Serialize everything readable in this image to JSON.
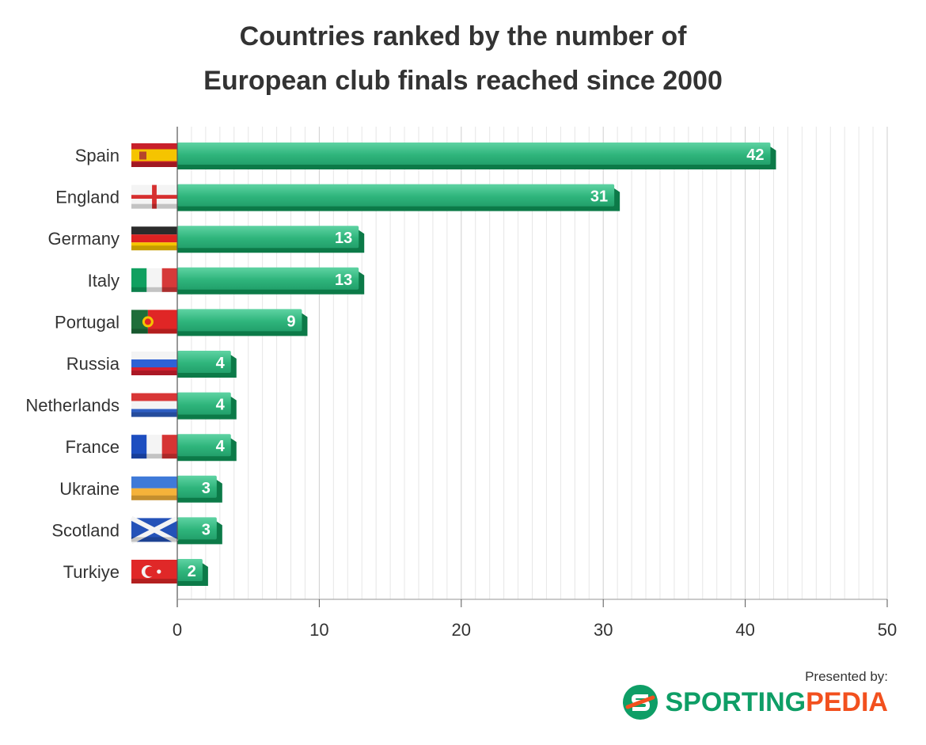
{
  "title_lines": [
    "Countries ranked by the number of",
    "European club finals reached since 2000"
  ],
  "chart_data": {
    "type": "bar",
    "orientation": "horizontal",
    "categories": [
      "Spain",
      "England",
      "Germany",
      "Italy",
      "Portugal",
      "Russia",
      "Netherlands",
      "France",
      "Ukraine",
      "Scotland",
      "Turkiye"
    ],
    "values": [
      42,
      31,
      13,
      13,
      9,
      4,
      4,
      4,
      3,
      3,
      2
    ],
    "xlim": [
      0,
      50
    ],
    "xticks": [
      0,
      10,
      20,
      30,
      40,
      50
    ],
    "grid": true,
    "data_labels": true,
    "bar_color": "#3cbf8a",
    "bar_dark_color": "#0c7a48",
    "flags": [
      "spain-flag-icon",
      "england-flag-icon",
      "germany-flag-icon",
      "italy-flag-icon",
      "portugal-flag-icon",
      "russia-flag-icon",
      "netherlands-flag-icon",
      "france-flag-icon",
      "ukraine-flag-icon",
      "scotland-flag-icon",
      "turkiye-flag-icon"
    ]
  },
  "footer": {
    "presented_by": "Presented by:",
    "logo_part1": "SPORTING",
    "logo_part2": "PEDIA",
    "logo_icon": "sportingpedia-logo-icon",
    "colors": {
      "green": "#0e9e66",
      "orange": "#f2501e"
    }
  }
}
